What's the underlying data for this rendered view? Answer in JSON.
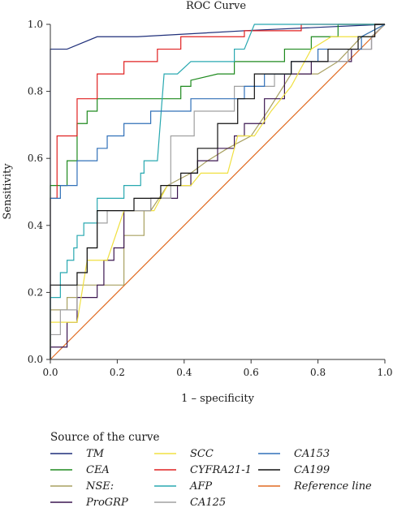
{
  "chart_data": {
    "type": "line",
    "title": "ROC Curve",
    "xlabel": "1 – specificity",
    "ylabel": "Sensitivity",
    "xlim": [
      0.0,
      1.0
    ],
    "ylim": [
      0.0,
      1.0
    ],
    "x_ticks": [
      "0.0",
      "0.2",
      "0.4",
      "0.6",
      "0.8",
      "1.0"
    ],
    "y_ticks": [
      "0.0",
      "0.2",
      "0.4",
      "0.6",
      "0.8",
      "1.0"
    ],
    "grid": false,
    "legend_title": "Source of the curve",
    "legend_position": "bottom",
    "series": [
      {
        "name": "TM",
        "color": "#1f2f7a",
        "points": [
          [
            0,
            0
          ],
          [
            0,
            0.926
          ],
          [
            0.05,
            0.926
          ],
          [
            0.14,
            0.963
          ],
          [
            0.26,
            0.963
          ],
          [
            0.6,
            0.982
          ],
          [
            1,
            1
          ]
        ]
      },
      {
        "name": "CEA",
        "color": "#1e8a1e",
        "points": [
          [
            0,
            0
          ],
          [
            0,
            0.519
          ],
          [
            0.05,
            0.519
          ],
          [
            0.05,
            0.593
          ],
          [
            0.08,
            0.593
          ],
          [
            0.08,
            0.704
          ],
          [
            0.11,
            0.704
          ],
          [
            0.11,
            0.741
          ],
          [
            0.14,
            0.741
          ],
          [
            0.14,
            0.778
          ],
          [
            0.39,
            0.778
          ],
          [
            0.39,
            0.815
          ],
          [
            0.42,
            0.815
          ],
          [
            0.42,
            0.833
          ],
          [
            0.5,
            0.852
          ],
          [
            0.55,
            0.852
          ],
          [
            0.55,
            0.889
          ],
          [
            0.7,
            0.889
          ],
          [
            0.7,
            0.926
          ],
          [
            0.78,
            0.926
          ],
          [
            0.78,
            0.963
          ],
          [
            0.86,
            0.963
          ],
          [
            0.86,
            1.0
          ],
          [
            1,
            1
          ]
        ]
      },
      {
        "name": "NSE:",
        "color": "#a8a060",
        "points": [
          [
            0,
            0
          ],
          [
            0,
            0.148
          ],
          [
            0.05,
            0.148
          ],
          [
            0.05,
            0.185
          ],
          [
            0.08,
            0.185
          ],
          [
            0.08,
            0.222
          ],
          [
            0.22,
            0.222
          ],
          [
            0.22,
            0.37
          ],
          [
            0.28,
            0.37
          ],
          [
            0.28,
            0.444
          ],
          [
            0.3,
            0.444
          ],
          [
            0.35,
            0.519
          ],
          [
            0.42,
            0.556
          ],
          [
            0.47,
            0.593
          ],
          [
            0.53,
            0.63
          ],
          [
            0.6,
            0.667
          ],
          [
            0.65,
            0.741
          ],
          [
            0.72,
            0.852
          ],
          [
            0.8,
            0.852
          ],
          [
            0.86,
            0.889
          ],
          [
            0.93,
            0.963
          ],
          [
            1,
            1
          ]
        ]
      },
      {
        "name": "ProGRP",
        "color": "#3b1650",
        "points": [
          [
            0,
            0
          ],
          [
            0,
            0.037
          ],
          [
            0.05,
            0.037
          ],
          [
            0.05,
            0.111
          ],
          [
            0.08,
            0.111
          ],
          [
            0.08,
            0.185
          ],
          [
            0.14,
            0.185
          ],
          [
            0.14,
            0.222
          ],
          [
            0.16,
            0.222
          ],
          [
            0.16,
            0.296
          ],
          [
            0.19,
            0.296
          ],
          [
            0.19,
            0.333
          ],
          [
            0.22,
            0.333
          ],
          [
            0.22,
            0.444
          ],
          [
            0.3,
            0.444
          ],
          [
            0.3,
            0.481
          ],
          [
            0.38,
            0.481
          ],
          [
            0.38,
            0.519
          ],
          [
            0.42,
            0.519
          ],
          [
            0.42,
            0.556
          ],
          [
            0.44,
            0.556
          ],
          [
            0.44,
            0.593
          ],
          [
            0.5,
            0.593
          ],
          [
            0.5,
            0.63
          ],
          [
            0.55,
            0.63
          ],
          [
            0.55,
            0.667
          ],
          [
            0.58,
            0.667
          ],
          [
            0.58,
            0.704
          ],
          [
            0.64,
            0.704
          ],
          [
            0.64,
            0.778
          ],
          [
            0.7,
            0.778
          ],
          [
            0.7,
            0.852
          ],
          [
            0.78,
            0.852
          ],
          [
            0.78,
            0.889
          ],
          [
            0.9,
            0.889
          ],
          [
            0.9,
            0.926
          ],
          [
            0.96,
            0.926
          ],
          [
            0.96,
            0.963
          ],
          [
            1,
            1
          ]
        ]
      },
      {
        "name": "SCC",
        "color": "#f0e040",
        "points": [
          [
            0,
            0
          ],
          [
            0,
            0.111
          ],
          [
            0.08,
            0.111
          ],
          [
            0.11,
            0.296
          ],
          [
            0.17,
            0.296
          ],
          [
            0.22,
            0.444
          ],
          [
            0.31,
            0.444
          ],
          [
            0.35,
            0.519
          ],
          [
            0.42,
            0.519
          ],
          [
            0.45,
            0.556
          ],
          [
            0.53,
            0.556
          ],
          [
            0.56,
            0.667
          ],
          [
            0.61,
            0.667
          ],
          [
            0.66,
            0.741
          ],
          [
            0.72,
            0.815
          ],
          [
            0.78,
            0.926
          ],
          [
            0.84,
            0.963
          ],
          [
            0.9,
            0.963
          ],
          [
            0.96,
            0.963
          ],
          [
            1,
            1
          ]
        ]
      },
      {
        "name": "CYFRA21-1",
        "color": "#e02020",
        "points": [
          [
            0,
            0
          ],
          [
            0,
            0.481
          ],
          [
            0.02,
            0.481
          ],
          [
            0.02,
            0.667
          ],
          [
            0.08,
            0.667
          ],
          [
            0.08,
            0.778
          ],
          [
            0.14,
            0.778
          ],
          [
            0.14,
            0.852
          ],
          [
            0.22,
            0.852
          ],
          [
            0.22,
            0.889
          ],
          [
            0.32,
            0.889
          ],
          [
            0.32,
            0.926
          ],
          [
            0.39,
            0.926
          ],
          [
            0.39,
            0.963
          ],
          [
            0.45,
            0.963
          ],
          [
            0.5,
            0.963
          ],
          [
            0.58,
            0.963
          ],
          [
            0.58,
            0.981
          ],
          [
            0.75,
            0.981
          ],
          [
            0.75,
            1.0
          ],
          [
            1,
            1
          ]
        ]
      },
      {
        "name": "AFP",
        "color": "#28a8b0",
        "points": [
          [
            0,
            0
          ],
          [
            0,
            0.185
          ],
          [
            0.03,
            0.185
          ],
          [
            0.03,
            0.259
          ],
          [
            0.05,
            0.259
          ],
          [
            0.05,
            0.296
          ],
          [
            0.07,
            0.296
          ],
          [
            0.07,
            0.333
          ],
          [
            0.08,
            0.333
          ],
          [
            0.08,
            0.37
          ],
          [
            0.1,
            0.37
          ],
          [
            0.1,
            0.407
          ],
          [
            0.14,
            0.407
          ],
          [
            0.14,
            0.481
          ],
          [
            0.22,
            0.481
          ],
          [
            0.22,
            0.519
          ],
          [
            0.27,
            0.519
          ],
          [
            0.27,
            0.556
          ],
          [
            0.28,
            0.556
          ],
          [
            0.28,
            0.593
          ],
          [
            0.32,
            0.593
          ],
          [
            0.34,
            0.852
          ],
          [
            0.38,
            0.852
          ],
          [
            0.42,
            0.889
          ],
          [
            0.55,
            0.889
          ],
          [
            0.55,
            0.926
          ],
          [
            0.58,
            0.926
          ],
          [
            0.61,
            1.0
          ],
          [
            1,
            1
          ]
        ]
      },
      {
        "name": "CA125",
        "color": "#a0a0a0",
        "points": [
          [
            0,
            0
          ],
          [
            0,
            0.074
          ],
          [
            0.03,
            0.074
          ],
          [
            0.03,
            0.148
          ],
          [
            0.08,
            0.148
          ],
          [
            0.08,
            0.259
          ],
          [
            0.11,
            0.259
          ],
          [
            0.11,
            0.333
          ],
          [
            0.14,
            0.333
          ],
          [
            0.14,
            0.407
          ],
          [
            0.17,
            0.407
          ],
          [
            0.17,
            0.444
          ],
          [
            0.3,
            0.444
          ],
          [
            0.3,
            0.481
          ],
          [
            0.36,
            0.481
          ],
          [
            0.36,
            0.667
          ],
          [
            0.43,
            0.667
          ],
          [
            0.43,
            0.741
          ],
          [
            0.55,
            0.741
          ],
          [
            0.55,
            0.815
          ],
          [
            0.67,
            0.815
          ],
          [
            0.67,
            0.852
          ],
          [
            0.72,
            0.852
          ],
          [
            0.72,
            0.889
          ],
          [
            0.89,
            0.889
          ],
          [
            0.89,
            0.926
          ],
          [
            0.96,
            0.926
          ],
          [
            0.96,
            0.963
          ],
          [
            1,
            1
          ]
        ]
      },
      {
        "name": "CA153",
        "color": "#3070b8",
        "points": [
          [
            0,
            0
          ],
          [
            0,
            0.481
          ],
          [
            0.03,
            0.481
          ],
          [
            0.03,
            0.519
          ],
          [
            0.08,
            0.519
          ],
          [
            0.08,
            0.593
          ],
          [
            0.14,
            0.593
          ],
          [
            0.14,
            0.63
          ],
          [
            0.17,
            0.63
          ],
          [
            0.17,
            0.667
          ],
          [
            0.22,
            0.667
          ],
          [
            0.22,
            0.704
          ],
          [
            0.3,
            0.704
          ],
          [
            0.3,
            0.741
          ],
          [
            0.42,
            0.741
          ],
          [
            0.42,
            0.778
          ],
          [
            0.58,
            0.778
          ],
          [
            0.58,
            0.815
          ],
          [
            0.64,
            0.815
          ],
          [
            0.64,
            0.852
          ],
          [
            0.72,
            0.852
          ],
          [
            0.72,
            0.889
          ],
          [
            0.8,
            0.889
          ],
          [
            0.8,
            0.926
          ],
          [
            0.93,
            0.926
          ],
          [
            0.93,
            0.963
          ],
          [
            1,
            1
          ]
        ]
      },
      {
        "name": "CA199",
        "color": "#111111",
        "points": [
          [
            0,
            0
          ],
          [
            0,
            0.222
          ],
          [
            0.08,
            0.222
          ],
          [
            0.08,
            0.259
          ],
          [
            0.11,
            0.259
          ],
          [
            0.11,
            0.333
          ],
          [
            0.14,
            0.333
          ],
          [
            0.14,
            0.444
          ],
          [
            0.25,
            0.444
          ],
          [
            0.25,
            0.481
          ],
          [
            0.33,
            0.481
          ],
          [
            0.33,
            0.519
          ],
          [
            0.39,
            0.519
          ],
          [
            0.39,
            0.556
          ],
          [
            0.44,
            0.556
          ],
          [
            0.44,
            0.63
          ],
          [
            0.5,
            0.63
          ],
          [
            0.5,
            0.704
          ],
          [
            0.56,
            0.704
          ],
          [
            0.56,
            0.778
          ],
          [
            0.61,
            0.778
          ],
          [
            0.61,
            0.852
          ],
          [
            0.72,
            0.852
          ],
          [
            0.72,
            0.889
          ],
          [
            0.83,
            0.889
          ],
          [
            0.83,
            0.926
          ],
          [
            0.92,
            0.926
          ],
          [
            0.92,
            0.963
          ],
          [
            0.97,
            0.963
          ],
          [
            0.97,
            1.0
          ],
          [
            1,
            1
          ]
        ]
      },
      {
        "name": "Reference line",
        "color": "#e06a20",
        "points": [
          [
            0,
            0
          ],
          [
            1,
            1
          ]
        ]
      }
    ]
  }
}
